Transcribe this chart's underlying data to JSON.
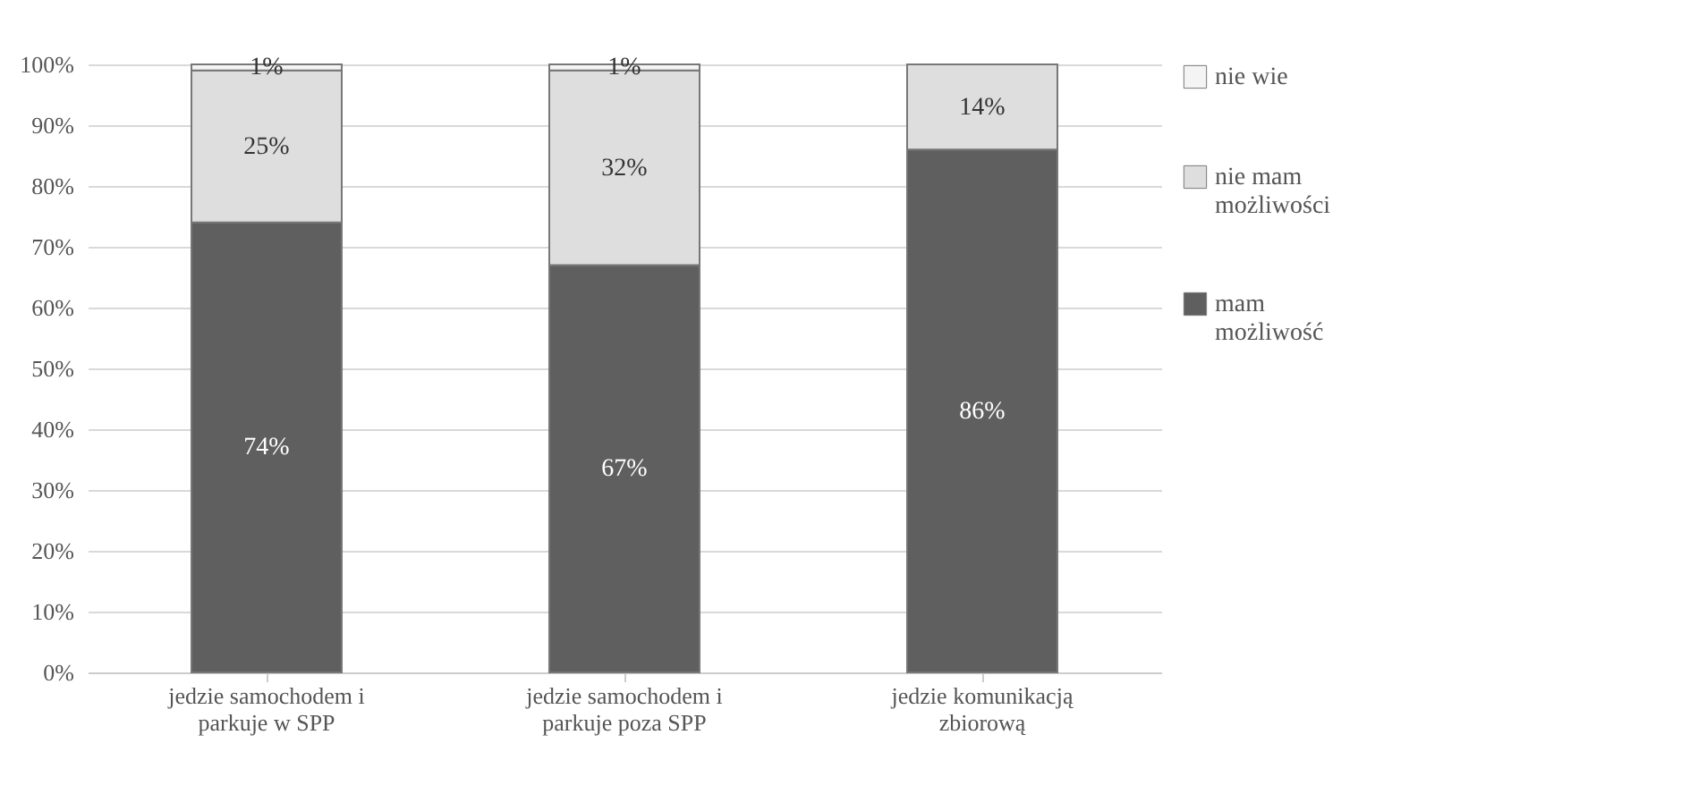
{
  "chart_data": {
    "type": "bar",
    "stacked": true,
    "categories": [
      "jedzie samochodem i parkuje w SPP",
      "jedzie samochodem i parkuje poza SPP",
      "jedzie komunikacją zbiorową"
    ],
    "series": [
      {
        "name": "mam możliwość",
        "color": "#5f5f5f",
        "values": [
          74,
          67,
          86
        ],
        "value_labels": [
          "74%",
          "67%",
          "86%"
        ]
      },
      {
        "name": "nie mam możliwości",
        "color": "#dedede",
        "values": [
          25,
          32,
          14
        ],
        "value_labels": [
          "25%",
          "32%",
          "14%"
        ]
      },
      {
        "name": "nie wie",
        "color": "#f4f4f4",
        "values": [
          1,
          1,
          null
        ],
        "value_labels": [
          "1%",
          "1%",
          null
        ]
      }
    ],
    "ylim": [
      0,
      100
    ],
    "yticks": [
      {
        "value": 0,
        "label": "0%"
      },
      {
        "value": 10,
        "label": "10%"
      },
      {
        "value": 20,
        "label": "20%"
      },
      {
        "value": 30,
        "label": "30%"
      },
      {
        "value": 40,
        "label": "40%"
      },
      {
        "value": 50,
        "label": "50%"
      },
      {
        "value": 60,
        "label": "60%"
      },
      {
        "value": 70,
        "label": "70%"
      },
      {
        "value": 80,
        "label": "80%"
      },
      {
        "value": 90,
        "label": "90%"
      },
      {
        "value": 100,
        "label": "100%"
      }
    ],
    "grid": "y",
    "legend": "right"
  }
}
